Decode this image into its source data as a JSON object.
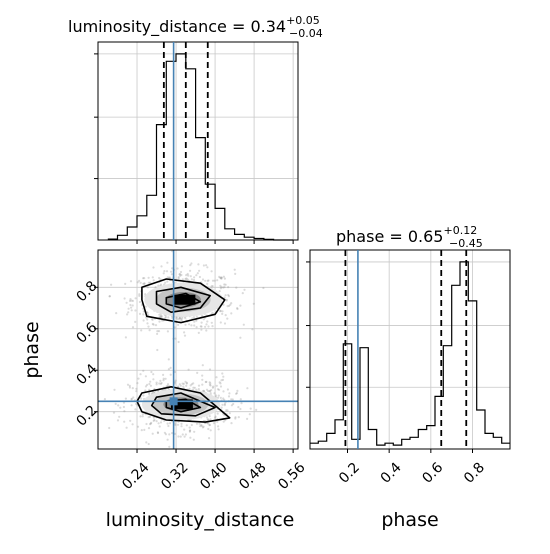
{
  "chart_data": {
    "type": "corner",
    "params": [
      "luminosity_distance",
      "phase"
    ],
    "truths": {
      "luminosity_distance": 0.315,
      "phase": 0.25
    },
    "hist_luminosity_distance": {
      "title_label": "luminosity_distance = 0.34",
      "title_sup": "+0.05",
      "title_sub": "−0.04",
      "quantiles": [
        0.295,
        0.34,
        0.385
      ],
      "bin_edges": [
        0.18,
        0.2,
        0.22,
        0.24,
        0.26,
        0.28,
        0.3,
        0.32,
        0.34,
        0.36,
        0.38,
        0.4,
        0.42,
        0.44,
        0.46,
        0.48,
        0.5,
        0.52,
        0.54,
        0.56
      ],
      "counts": [
        0.005,
        0.025,
        0.07,
        0.13,
        0.24,
        0.62,
        0.96,
        1.0,
        0.92,
        0.55,
        0.3,
        0.17,
        0.06,
        0.03,
        0.015,
        0.008,
        0.004,
        0,
        0
      ],
      "xlim": [
        0.16,
        0.57
      ],
      "xticks": [
        0.24,
        0.32,
        0.4,
        0.48,
        0.56
      ],
      "xtick_labels": [
        "0.24",
        "0.32",
        "0.40",
        "0.48",
        "0.56"
      ],
      "xlabel": "luminosity_distance"
    },
    "hist_phase": {
      "title_label": "phase = 0.65",
      "title_sup": "+0.12",
      "title_sub": "−0.45",
      "quantiles": [
        0.19,
        0.65,
        0.77
      ],
      "bin_edges": [
        0.02,
        0.06,
        0.1,
        0.14,
        0.18,
        0.22,
        0.26,
        0.3,
        0.34,
        0.38,
        0.42,
        0.46,
        0.5,
        0.54,
        0.58,
        0.62,
        0.66,
        0.7,
        0.74,
        0.78,
        0.82,
        0.86,
        0.9,
        0.94,
        0.98
      ],
      "counts": [
        0.03,
        0.04,
        0.08,
        0.15,
        0.54,
        0.05,
        0.52,
        0.1,
        0.02,
        0.03,
        0.02,
        0.05,
        0.06,
        0.1,
        0.12,
        0.27,
        0.53,
        0.84,
        0.96,
        0.76,
        0.2,
        0.08,
        0.06,
        0.03
      ],
      "xlim": [
        0.02,
        0.98
      ],
      "xticks": [
        0.2,
        0.4,
        0.6,
        0.8
      ],
      "xtick_labels": [
        "0.2",
        "0.4",
        "0.6",
        "0.8"
      ],
      "xlabel": "phase"
    },
    "scatter": {
      "xlim": [
        0.16,
        0.57
      ],
      "ylim": [
        0.02,
        0.98
      ],
      "yticks": [
        0.2,
        0.4,
        0.6,
        0.8
      ],
      "ytick_labels": [
        "0.2",
        "0.4",
        "0.6",
        "0.8"
      ],
      "ylabel": "phase",
      "modes": [
        {
          "cx": 0.335,
          "cy": 0.74,
          "sx": 0.04,
          "sy": 0.055
        },
        {
          "cx": 0.33,
          "cy": 0.235,
          "sx": 0.04,
          "sy": 0.05
        }
      ],
      "contours": [
        [
          [
            0.25,
            0.8
          ],
          [
            0.3,
            0.84
          ],
          [
            0.37,
            0.82
          ],
          [
            0.42,
            0.74
          ],
          [
            0.4,
            0.67
          ],
          [
            0.33,
            0.63
          ],
          [
            0.26,
            0.66
          ],
          [
            0.25,
            0.74
          ]
        ],
        [
          [
            0.28,
            0.78
          ],
          [
            0.33,
            0.8
          ],
          [
            0.39,
            0.76
          ],
          [
            0.37,
            0.7
          ],
          [
            0.31,
            0.68
          ],
          [
            0.28,
            0.72
          ]
        ],
        [
          [
            0.3,
            0.75
          ],
          [
            0.34,
            0.77
          ],
          [
            0.37,
            0.73
          ],
          [
            0.33,
            0.7
          ],
          [
            0.3,
            0.72
          ]
        ],
        [
          [
            0.25,
            0.29
          ],
          [
            0.31,
            0.32
          ],
          [
            0.37,
            0.29
          ],
          [
            0.43,
            0.17
          ],
          [
            0.38,
            0.15
          ],
          [
            0.3,
            0.16
          ],
          [
            0.25,
            0.2
          ],
          [
            0.24,
            0.25
          ]
        ],
        [
          [
            0.28,
            0.27
          ],
          [
            0.33,
            0.29
          ],
          [
            0.4,
            0.22
          ],
          [
            0.36,
            0.18
          ],
          [
            0.29,
            0.19
          ],
          [
            0.27,
            0.23
          ]
        ],
        [
          [
            0.3,
            0.25
          ],
          [
            0.34,
            0.26
          ],
          [
            0.37,
            0.22
          ],
          [
            0.33,
            0.2
          ],
          [
            0.3,
            0.22
          ]
        ]
      ]
    }
  }
}
